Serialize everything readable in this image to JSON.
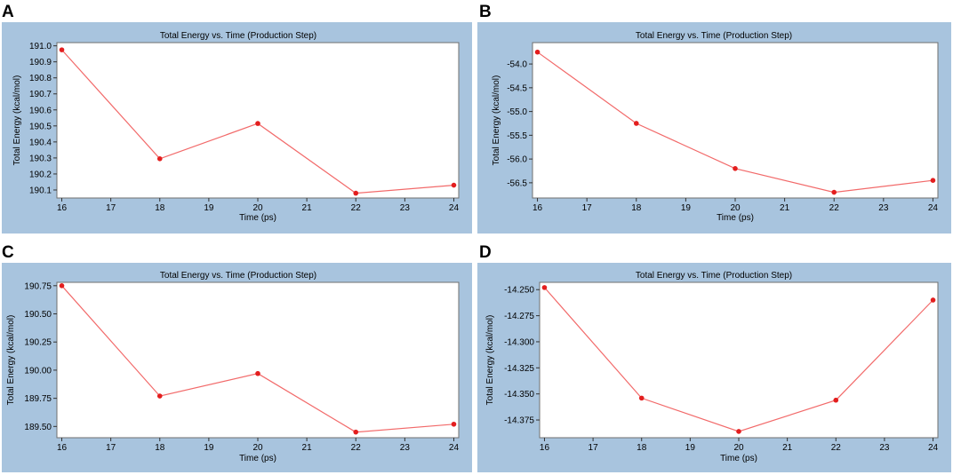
{
  "colors": {
    "frame": "#a8c4de",
    "plot_bg": "#ffffff",
    "line": "#f26a6a",
    "marker": "#e31e1e"
  },
  "chart_data": [
    {
      "panel": "A",
      "type": "line",
      "title": "Total Energy vs. Time (Production Step)",
      "xlabel": "Time (ps)",
      "ylabel": "Total Energy (kcal/mol)",
      "x": [
        16,
        18,
        20,
        22,
        24
      ],
      "y": [
        190.975,
        190.295,
        190.515,
        190.08,
        190.13
      ],
      "xlim": [
        15.9,
        24.1
      ],
      "ylim": [
        190.05,
        191.02
      ],
      "xticks": [
        16,
        17,
        18,
        19,
        20,
        21,
        22,
        23,
        24
      ],
      "yticks": [
        190.1,
        190.2,
        190.3,
        190.4,
        190.5,
        190.6,
        190.7,
        190.8,
        190.9,
        191.0
      ],
      "xtick_labels": [
        "16",
        "17",
        "18",
        "19",
        "20",
        "21",
        "22",
        "23",
        "24"
      ],
      "ytick_labels": [
        "190.1",
        "190.2",
        "190.3",
        "190.4",
        "190.5",
        "190.6",
        "190.7",
        "190.8",
        "190.9",
        "191.0"
      ]
    },
    {
      "panel": "B",
      "type": "line",
      "title": "Total Energy vs. Time (Production Step)",
      "xlabel": "Time (ps)",
      "ylabel": "Total Energy (kcal/mol)",
      "x": [
        16,
        18,
        20,
        22,
        24
      ],
      "y": [
        -53.75,
        -55.25,
        -56.2,
        -56.7,
        -56.45
      ],
      "xlim": [
        15.9,
        24.1
      ],
      "ylim": [
        -56.82,
        -53.55
      ],
      "xticks": [
        16,
        17,
        18,
        19,
        20,
        21,
        22,
        23,
        24
      ],
      "yticks": [
        -54.0,
        -54.5,
        -55.0,
        -55.5,
        -56.0,
        -56.5
      ],
      "xtick_labels": [
        "16",
        "17",
        "18",
        "19",
        "20",
        "21",
        "22",
        "23",
        "24"
      ],
      "ytick_labels": [
        "-54.0",
        "-54.5",
        "-55.0",
        "-55.5",
        "-56.0",
        "-56.5"
      ]
    },
    {
      "panel": "C",
      "type": "line",
      "title": "Total Energy vs. Time (Production Step)",
      "xlabel": "Time (ps)",
      "ylabel": "Total Energy (kcal/mol)",
      "x": [
        16,
        18,
        20,
        22,
        24
      ],
      "y": [
        190.75,
        189.77,
        189.97,
        189.45,
        189.52
      ],
      "xlim": [
        15.9,
        24.1
      ],
      "ylim": [
        189.4,
        190.78
      ],
      "xticks": [
        16,
        17,
        18,
        19,
        20,
        21,
        22,
        23,
        24
      ],
      "yticks": [
        189.5,
        189.75,
        190.0,
        190.25,
        190.5,
        190.75
      ],
      "xtick_labels": [
        "16",
        "17",
        "18",
        "19",
        "20",
        "21",
        "22",
        "23",
        "24"
      ],
      "ytick_labels": [
        "189.50",
        "189.75",
        "190.00",
        "190.25",
        "190.50",
        "190.75"
      ]
    },
    {
      "panel": "D",
      "type": "line",
      "title": "Total Energy vs. Time (Production Step)",
      "xlabel": "Time (ps)",
      "ylabel": "Total Energy (kcal/mol)",
      "x": [
        16,
        18,
        20,
        22,
        24
      ],
      "y": [
        -14.248,
        -14.354,
        -14.386,
        -14.356,
        -14.26
      ],
      "xlim": [
        15.9,
        24.1
      ],
      "ylim": [
        -14.392,
        -14.243
      ],
      "xticks": [
        16,
        17,
        18,
        19,
        20,
        21,
        22,
        23,
        24
      ],
      "yticks": [
        -14.25,
        -14.275,
        -14.3,
        -14.325,
        -14.35,
        -14.375
      ],
      "xtick_labels": [
        "16",
        "17",
        "18",
        "19",
        "20",
        "21",
        "22",
        "23",
        "24"
      ],
      "ytick_labels": [
        "-14.250",
        "-14.275",
        "-14.300",
        "-14.325",
        "-14.350",
        "-14.375"
      ]
    }
  ]
}
